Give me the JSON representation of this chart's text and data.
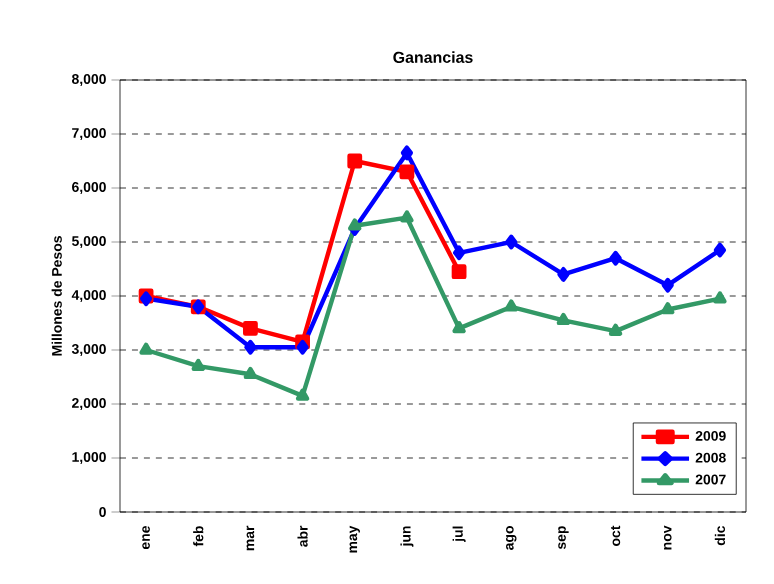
{
  "chart_data": {
    "type": "line",
    "title": "Ganancias",
    "ylabel": "Millones de Pesos",
    "categories": [
      "ene",
      "feb",
      "mar",
      "abr",
      "may",
      "jun",
      "jul",
      "ago",
      "sep",
      "oct",
      "nov",
      "dic"
    ],
    "series": [
      {
        "name": "2009",
        "color": "#ff0000",
        "marker": "square",
        "values": [
          4000,
          3800,
          3400,
          3150,
          6500,
          6300,
          4450,
          null,
          null,
          null,
          null,
          null
        ]
      },
      {
        "name": "2008",
        "color": "#0000ff",
        "marker": "diamond",
        "values": [
          3950,
          3800,
          3050,
          3050,
          5250,
          6650,
          4800,
          5000,
          4400,
          4700,
          4200,
          4850
        ]
      },
      {
        "name": "2007",
        "color": "#339966",
        "marker": "triangle",
        "values": [
          3000,
          2700,
          2550,
          2150,
          5300,
          5450,
          3400,
          3800,
          3550,
          3350,
          3750,
          3950
        ]
      }
    ],
    "ylim": [
      0,
      8000
    ],
    "yticks": [
      {
        "value": 0,
        "label": "0"
      },
      {
        "value": 1000,
        "label": "1,000"
      },
      {
        "value": 2000,
        "label": "2,000"
      },
      {
        "value": 3000,
        "label": "3,000"
      },
      {
        "value": 4000,
        "label": "4,000"
      },
      {
        "value": 5000,
        "label": "5,000"
      },
      {
        "value": 6000,
        "label": "6,000"
      },
      {
        "value": 7000,
        "label": "7,000"
      },
      {
        "value": 8000,
        "label": "8,000"
      }
    ],
    "grid": "y",
    "legend": "bottom right",
    "line_style": "solid"
  }
}
